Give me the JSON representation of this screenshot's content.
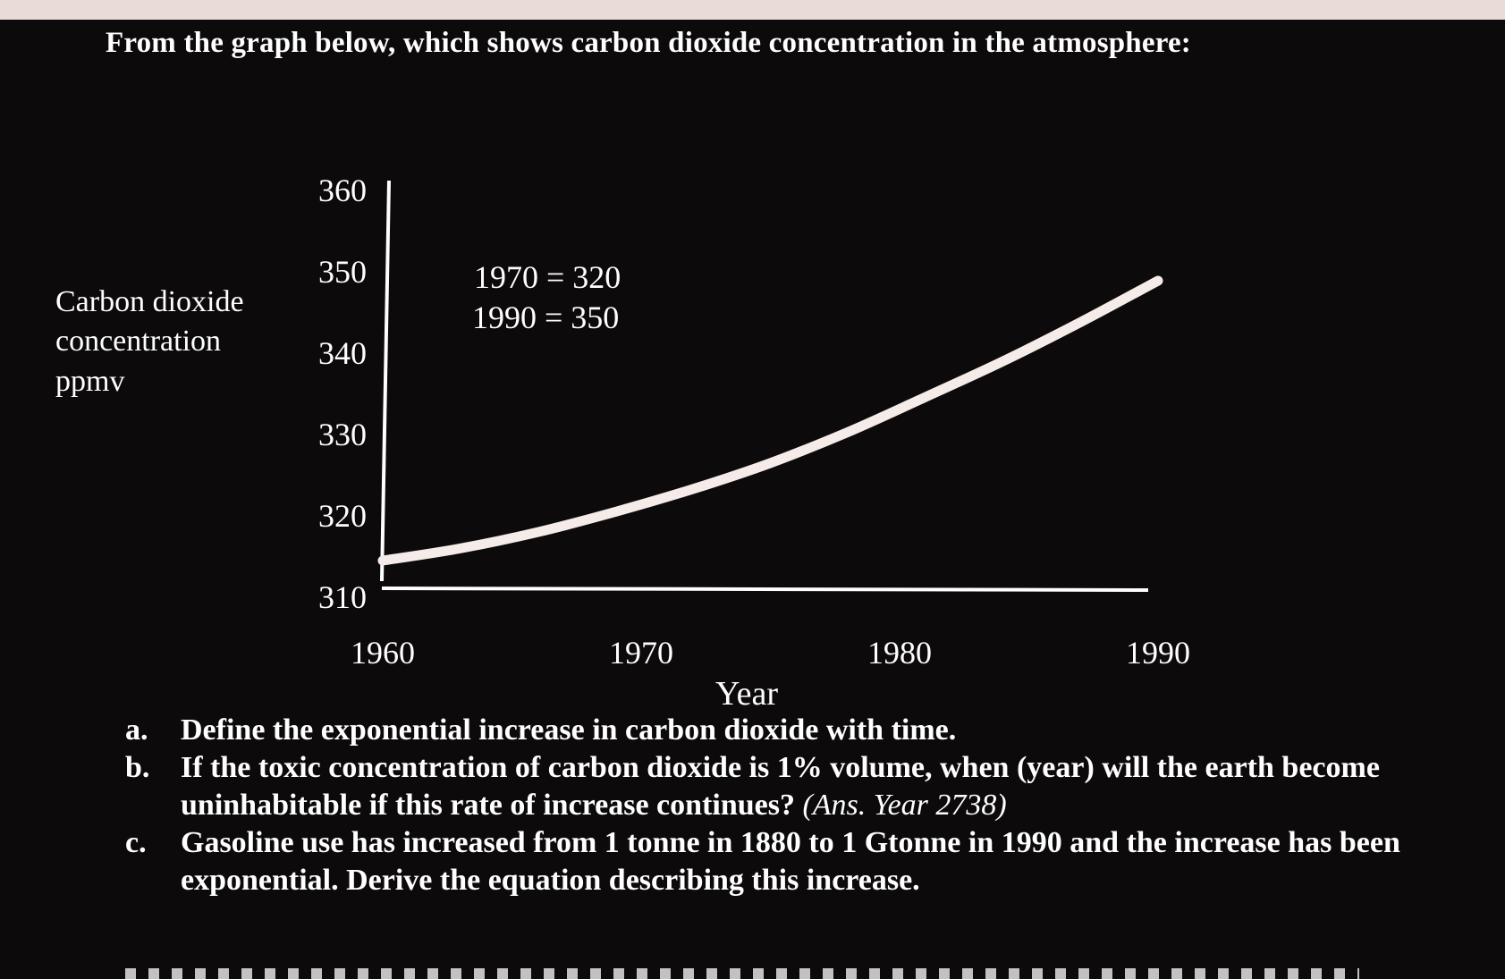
{
  "question": "From the graph below, which shows carbon dioxide concentration in the atmosphere:",
  "chart_data": {
    "type": "line",
    "title": "",
    "xlabel": "Year",
    "ylabel": "Carbon dioxide concentration ppmv",
    "ylabel_lines": [
      "Carbon dioxide",
      "concentration",
      "ppmv"
    ],
    "x_ticks": [
      1960,
      1970,
      1980,
      1990
    ],
    "y_ticks": [
      310,
      320,
      330,
      340,
      350,
      360
    ],
    "xlim": [
      1960,
      1990
    ],
    "ylim": [
      310,
      360
    ],
    "annotations": [
      "1970 = 320",
      "1990 = 350"
    ],
    "series": [
      {
        "x": [
          1960,
          1963,
          1966,
          1969,
          1972,
          1975,
          1978,
          1981,
          1984,
          1987,
          1990
        ],
        "y": [
          314.5,
          316.0,
          318.0,
          320.5,
          323.3,
          326.5,
          330.3,
          334.6,
          339.0,
          343.8,
          348.9
        ]
      }
    ],
    "colors": {
      "line": "#f5ecea",
      "axis": "#ffffff",
      "background": "#0c0a0a"
    }
  },
  "tasks": [
    {
      "letter": "a.",
      "text": "Define the exponential increase in carbon dioxide with time.",
      "answer": ""
    },
    {
      "letter": "b.",
      "text": "If the toxic concentration of carbon dioxide is 1% volume, when (year) will the earth become uninhabitable if this rate of increase continues?",
      "answer": "(Ans. Year 2738)"
    },
    {
      "letter": "c.",
      "text": "Gasoline use has increased from 1 tonne in 1880 to 1 Gtonne in 1990 and the increase has been exponential. Derive the equation describing this increase.",
      "answer": ""
    }
  ]
}
